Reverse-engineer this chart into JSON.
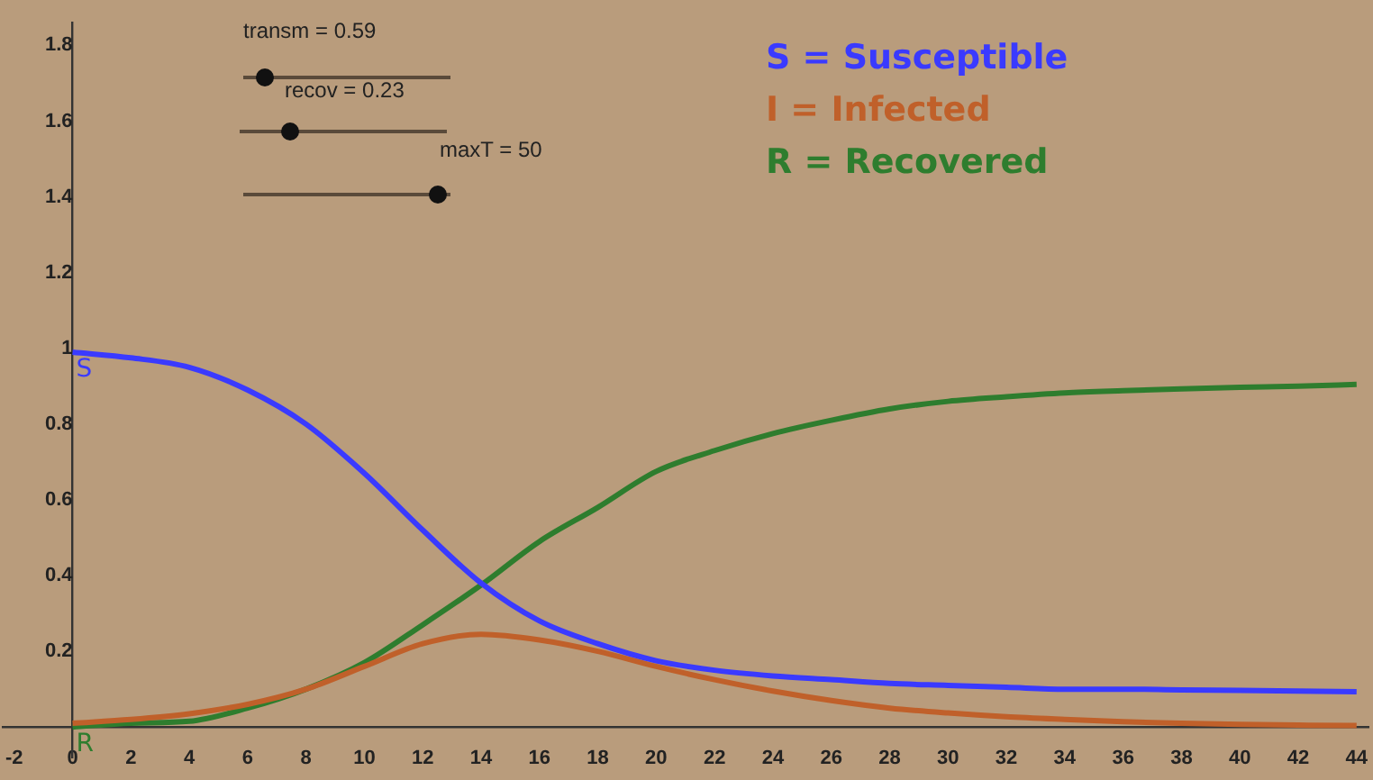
{
  "chart_data": {
    "type": "line",
    "x": [
      0,
      2,
      4,
      6,
      8,
      10,
      12,
      14,
      16,
      18,
      20,
      22,
      24,
      26,
      28,
      30,
      32,
      34,
      36,
      38,
      40,
      42,
      44
    ],
    "series": [
      {
        "name": "S = Susceptible",
        "color": "#3a3aff",
        "values": [
          0.99,
          0.975,
          0.95,
          0.89,
          0.8,
          0.67,
          0.52,
          0.38,
          0.28,
          0.22,
          0.175,
          0.15,
          0.135,
          0.125,
          0.115,
          0.11,
          0.105,
          0.1,
          0.1,
          0.098,
          0.097,
          0.095,
          0.093
        ]
      },
      {
        "name": "I = Infected",
        "color": "#c0602a",
        "values": [
          0.01,
          0.02,
          0.035,
          0.06,
          0.1,
          0.16,
          0.22,
          0.245,
          0.23,
          0.2,
          0.16,
          0.125,
          0.095,
          0.07,
          0.05,
          0.037,
          0.027,
          0.02,
          0.014,
          0.01,
          0.007,
          0.005,
          0.004
        ]
      },
      {
        "name": "R = Recovered",
        "color": "#2e7d2e",
        "values": [
          0,
          0.01,
          0.015,
          0.05,
          0.1,
          0.17,
          0.27,
          0.375,
          0.49,
          0.58,
          0.675,
          0.73,
          0.775,
          0.81,
          0.84,
          0.86,
          0.872,
          0.882,
          0.888,
          0.893,
          0.897,
          0.9,
          0.905
        ]
      }
    ],
    "xlim": [
      -2.4,
      44.4
    ],
    "ylim": [
      -0.08,
      1.86
    ],
    "xticks": [
      -2,
      0,
      2,
      4,
      6,
      8,
      10,
      12,
      14,
      16,
      18,
      20,
      22,
      24,
      26,
      28,
      30,
      32,
      34,
      36,
      38,
      40,
      42,
      44
    ],
    "yticks": [
      0.2,
      0.4,
      0.6,
      0.8,
      1,
      1.2,
      1.4,
      1.6,
      1.8
    ],
    "legend": "top right",
    "grid": false,
    "annotations": [
      "transm = 0.59",
      "recov = 0.23",
      "maxT = 50",
      {
        "text": "S",
        "x": 0,
        "y": 0.99
      },
      {
        "text": "R",
        "x": 0,
        "y": 0
      }
    ]
  }
}
